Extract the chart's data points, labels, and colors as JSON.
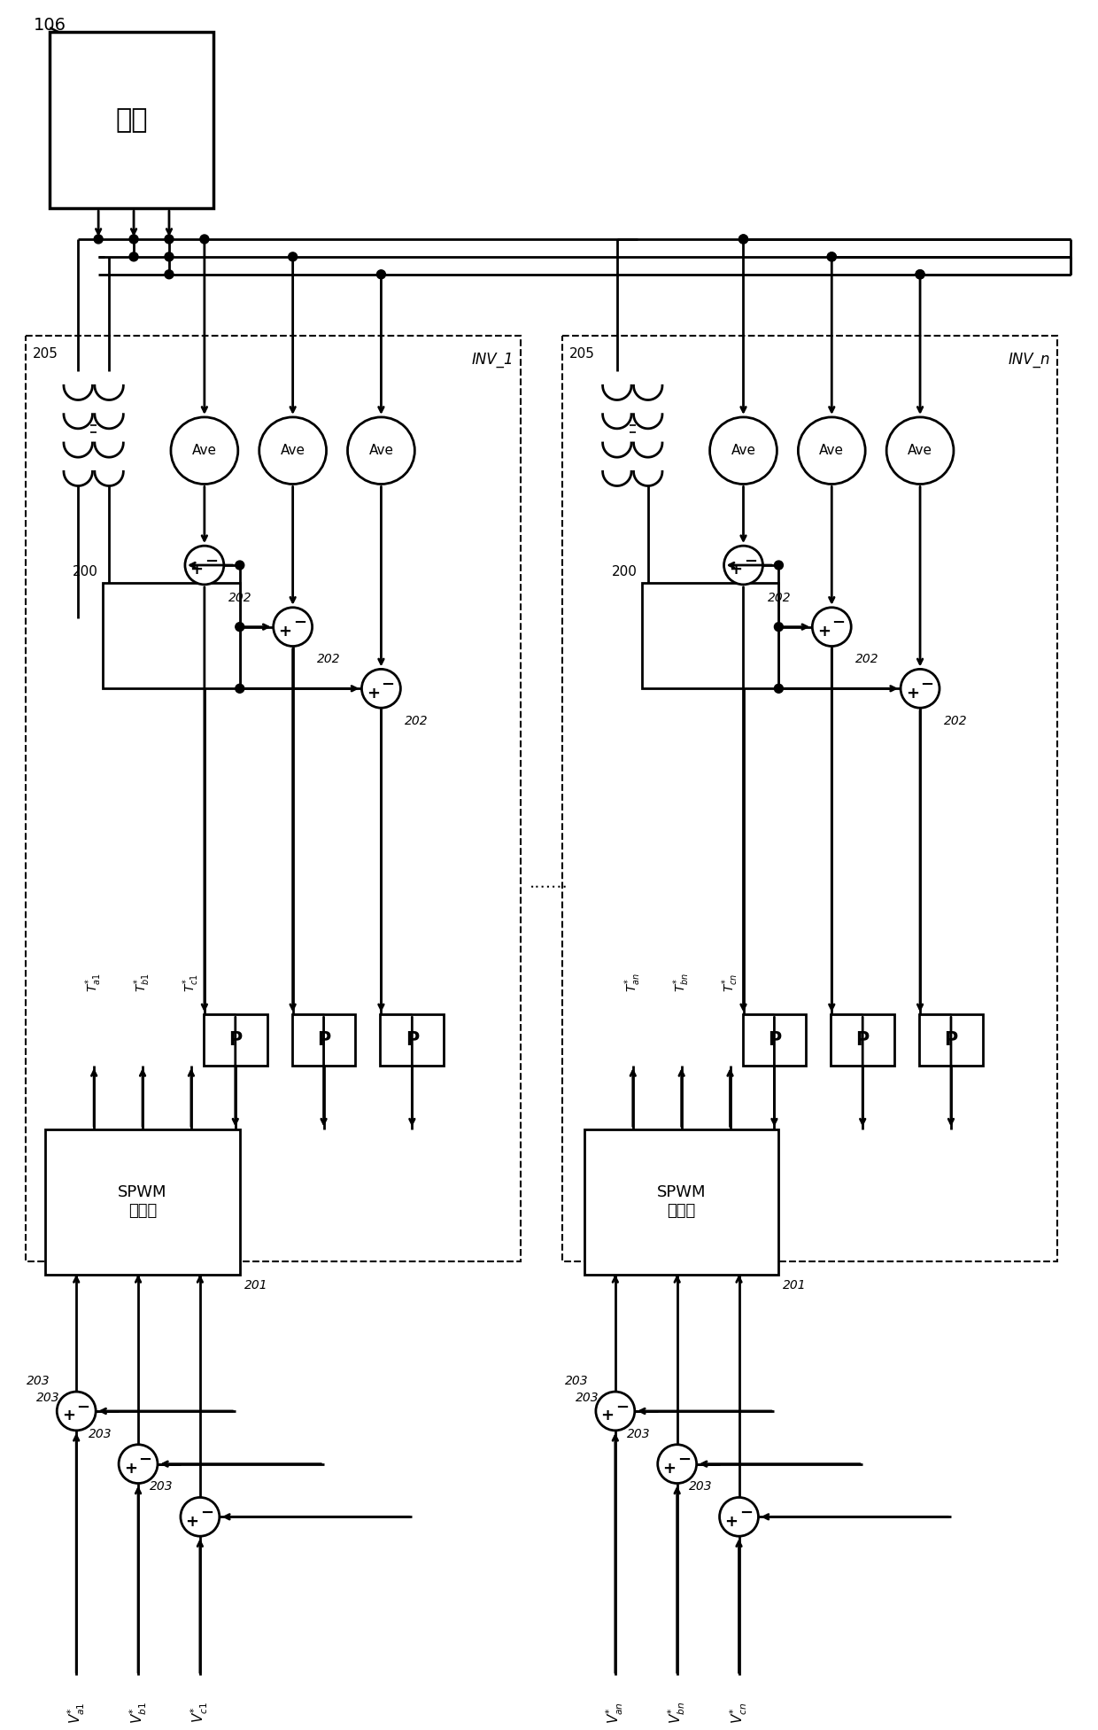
{
  "bg": "#ffffff",
  "lc": "#000000",
  "lw": 2.0,
  "dlw": 1.5,
  "fig_w": 12.4,
  "fig_h": 19.53,
  "motor_label": "马达",
  "motor_ref": "106",
  "inv1_label": "INV_1",
  "invn_label": "INV_n",
  "spwm_label": "SPWM\n控制器",
  "spwm_ref": "201",
  "filter_ref": "200",
  "inductor_ref": "205",
  "ave_label": "Ave",
  "ref202": "202",
  "ref203": "203",
  "p_label": "P",
  "dots_sep": ".......",
  "va1": "$V_{a1}^{*}$",
  "vb1": "$V_{b1}^{*}$",
  "vc1": "$V_{c1}^{*}$",
  "van": "$V_{an}^{*}$",
  "vbn": "$V_{bn}^{*}$",
  "vcn": "$V_{cn}^{*}$",
  "ta1": "$T_{a1}^{*}$",
  "tb1": "$T_{b1}^{*}$",
  "tc1": "$T_{c1}^{*}$",
  "tan": "$T_{an}^{*}$",
  "tbn": "$T_{bn}^{*}$",
  "tcn": "$T_{cn}^{*}$"
}
